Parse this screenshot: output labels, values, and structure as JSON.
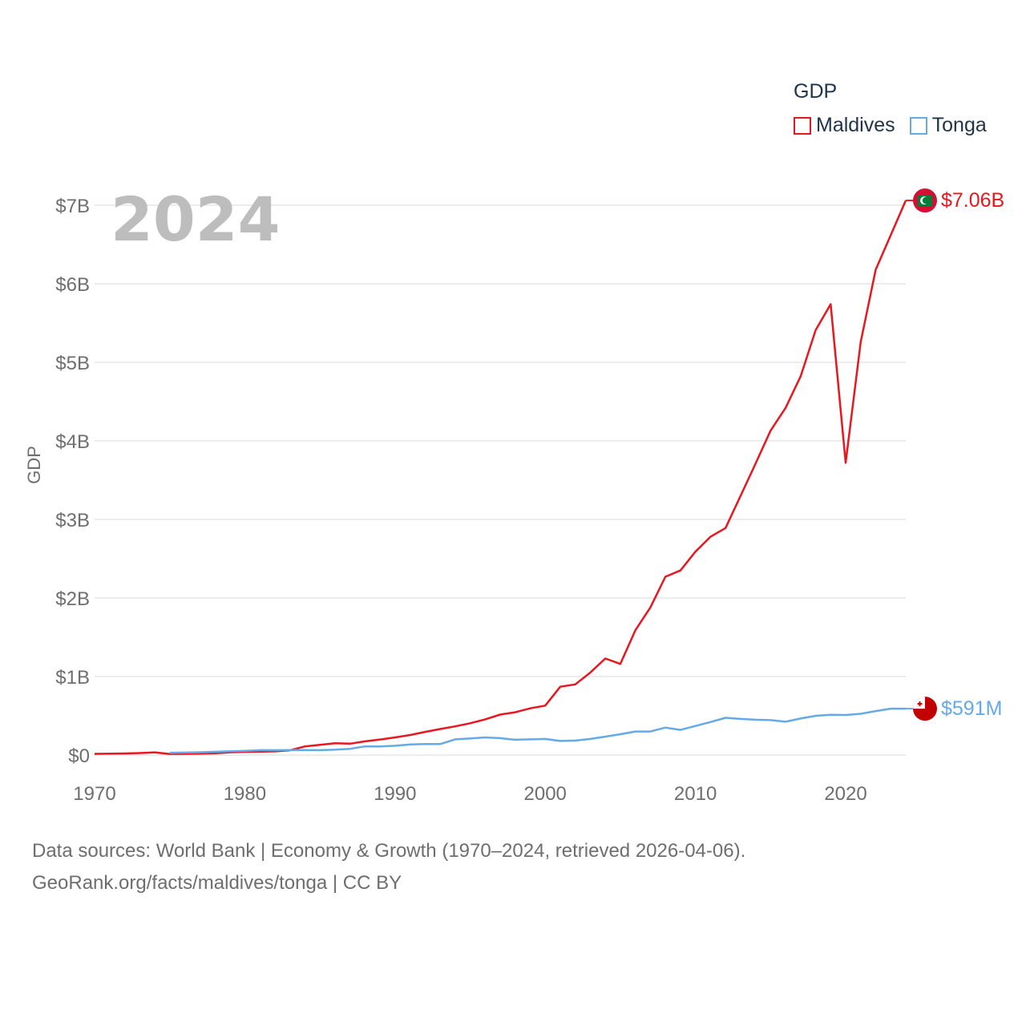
{
  "legend": {
    "title": "GDP",
    "items": [
      {
        "name": "Maldives",
        "color": "#e8171f"
      },
      {
        "name": "Tonga",
        "color": "#64aae8"
      }
    ]
  },
  "footer": {
    "line1": "Data sources: World Bank | Economy & Growth (1970–2024, retrieved 2026-04-06).",
    "line2": "GeoRank.org/facts/maldives/tonga | CC BY"
  },
  "chart_data": {
    "type": "line",
    "title": "",
    "year_label": "2024",
    "xlabel": "",
    "ylabel": "GDP",
    "xlim": [
      1970,
      2024
    ],
    "ylim": [
      0,
      7000000000
    ],
    "x_ticks": [
      1970,
      1980,
      1990,
      2000,
      2010,
      2020
    ],
    "y_ticks": [
      {
        "value": 0,
        "label": "$0"
      },
      {
        "value": 1000000000,
        "label": "$1B"
      },
      {
        "value": 2000000000,
        "label": "$2B"
      },
      {
        "value": 3000000000,
        "label": "$3B"
      },
      {
        "value": 4000000000,
        "label": "$4B"
      },
      {
        "value": 5000000000,
        "label": "$5B"
      },
      {
        "value": 6000000000,
        "label": "$6B"
      },
      {
        "value": 7000000000,
        "label": "$7B"
      }
    ],
    "series": [
      {
        "name": "Maldives",
        "color": "#e8171f",
        "end_label": "$7.06B",
        "flag": "maldives-flag-icon",
        "x": [
          1970,
          1971,
          1972,
          1973,
          1974,
          1975,
          1976,
          1977,
          1978,
          1979,
          1980,
          1981,
          1982,
          1983,
          1984,
          1985,
          1986,
          1987,
          1988,
          1989,
          1990,
          1991,
          1992,
          1993,
          1994,
          1995,
          1996,
          1997,
          1998,
          1999,
          2000,
          2001,
          2002,
          2003,
          2004,
          2005,
          2006,
          2007,
          2008,
          2009,
          2010,
          2011,
          2012,
          2013,
          2014,
          2015,
          2016,
          2017,
          2018,
          2019,
          2020,
          2021,
          2022,
          2023,
          2024
        ],
        "values": [
          15000000,
          17000000,
          20000000,
          25000000,
          35000000,
          14000000,
          15000000,
          17000000,
          22000000,
          35000000,
          41000000,
          44000000,
          47000000,
          60000000,
          110000000,
          130000000,
          150000000,
          145000000,
          175000000,
          198000000,
          225000000,
          255000000,
          295000000,
          332000000,
          365000000,
          405000000,
          455000000,
          515000000,
          545000000,
          595000000,
          630000000,
          870000000,
          900000000,
          1050000000,
          1230000000,
          1160000000,
          1590000000,
          1880000000,
          2270000000,
          2350000000,
          2590000000,
          2780000000,
          2890000000,
          3300000000,
          3710000000,
          4130000000,
          4420000000,
          4820000000,
          5410000000,
          5740000000,
          3720000000,
          5260000000,
          6180000000,
          6620000000,
          7060000000
        ]
      },
      {
        "name": "Tonga",
        "color": "#64aae8",
        "end_label": "$591M",
        "flag": "tonga-flag-icon",
        "x": [
          1975,
          1976,
          1977,
          1978,
          1979,
          1980,
          1981,
          1982,
          1983,
          1984,
          1985,
          1986,
          1987,
          1988,
          1989,
          1990,
          1991,
          1992,
          1993,
          1994,
          1995,
          1996,
          1997,
          1998,
          1999,
          2000,
          2001,
          2002,
          2003,
          2004,
          2005,
          2006,
          2007,
          2008,
          2009,
          2010,
          2011,
          2012,
          2013,
          2014,
          2015,
          2016,
          2017,
          2018,
          2019,
          2020,
          2021,
          2022,
          2023,
          2024
        ],
        "values": [
          30000000,
          32000000,
          36000000,
          42000000,
          48000000,
          54000000,
          62000000,
          62000000,
          64000000,
          64000000,
          62000000,
          68000000,
          80000000,
          110000000,
          110000000,
          118000000,
          135000000,
          140000000,
          140000000,
          200000000,
          212000000,
          225000000,
          215000000,
          195000000,
          200000000,
          205000000,
          180000000,
          185000000,
          205000000,
          235000000,
          265000000,
          300000000,
          300000000,
          350000000,
          320000000,
          370000000,
          420000000,
          475000000,
          460000000,
          450000000,
          445000000,
          425000000,
          465000000,
          500000000,
          512000000,
          510000000,
          525000000,
          560000000,
          591000000,
          591000000
        ]
      }
    ]
  }
}
